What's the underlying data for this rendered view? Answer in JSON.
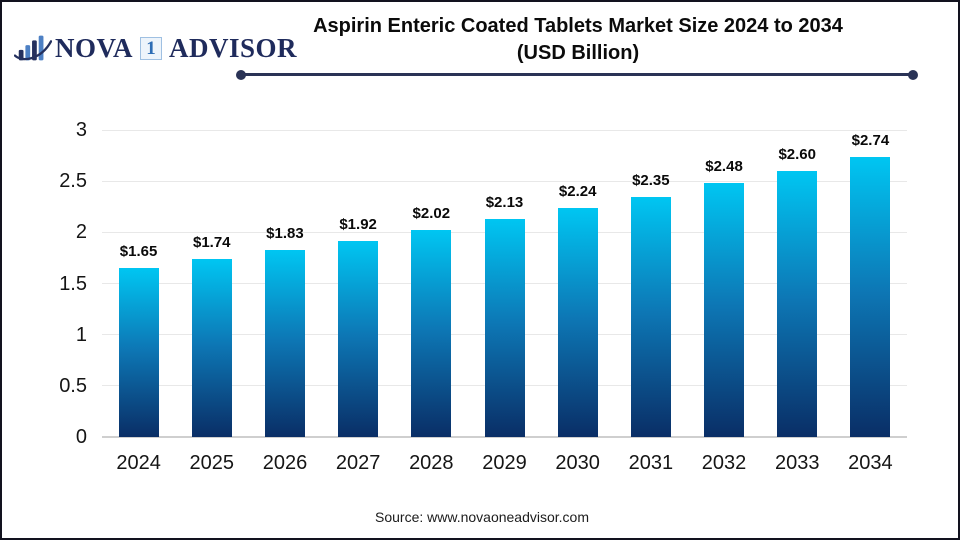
{
  "logo": {
    "part1": "NOVA",
    "part2": "1",
    "part3": "ADVISOR"
  },
  "title": {
    "line1": "Aspirin Enteric Coated Tablets Market Size 2024 to 2034",
    "line2": "(USD Billion)"
  },
  "source": "Source: www.novaoneadvisor.com",
  "colors": {
    "bar_top": "#00c6f2",
    "bar_mid": "#0d77b5",
    "bar_bottom": "#0a2e66",
    "accent_navy": "#2a3356",
    "logo_navy": "#1f2b5c",
    "gridline": "#e8e8e8",
    "axis_line": "#cfcfcf"
  },
  "chart_data": {
    "type": "bar",
    "title": "Aspirin Enteric Coated Tablets Market Size 2024 to 2034 (USD Billion)",
    "categories": [
      "2024",
      "2025",
      "2026",
      "2027",
      "2028",
      "2029",
      "2030",
      "2031",
      "2032",
      "2033",
      "2034"
    ],
    "values": [
      1.65,
      1.74,
      1.83,
      1.92,
      2.02,
      2.13,
      2.24,
      2.35,
      2.48,
      2.6,
      2.74
    ],
    "value_labels": [
      "$1.65",
      "$1.74",
      "$1.83",
      "$1.92",
      "$2.02",
      "$2.13",
      "$2.24",
      "$2.35",
      "$2.48",
      "$2.60",
      "$2.74"
    ],
    "xlabel": "",
    "ylabel": "",
    "ylim": [
      0,
      3
    ],
    "yticks": [
      0,
      0.5,
      1,
      1.5,
      2,
      2.5,
      3
    ],
    "ytick_labels": [
      "0",
      "0.5",
      "1",
      "1.5",
      "2",
      "2.5",
      "3"
    ],
    "grid": true,
    "legend": false
  }
}
